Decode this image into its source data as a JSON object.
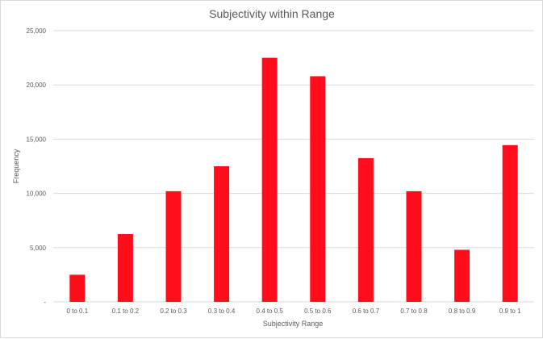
{
  "chart_data": {
    "type": "bar",
    "title": "Subjectivity within Range",
    "xlabel": "Subjectivity Range",
    "ylabel": "Frequency",
    "categories": [
      "0 to 0.1",
      "0.1 to 0.2",
      "0.2 to 0.3",
      "0.3 to 0.4",
      "0.4 to 0.5",
      "0.5 to 0.6",
      "0.6 to 0.7",
      "0.7 to 0.8",
      "0.8 to 0.9",
      "0.9 to 1"
    ],
    "values": [
      2500,
      6250,
      10200,
      12500,
      22500,
      20800,
      13250,
      10200,
      4800,
      14450
    ],
    "ylim": [
      0,
      25000
    ],
    "yticks": [
      {
        "value": 0,
        "label": "-"
      },
      {
        "value": 5000,
        "label": "5,000"
      },
      {
        "value": 10000,
        "label": "10,000"
      },
      {
        "value": 15000,
        "label": "15,000"
      },
      {
        "value": 20000,
        "label": "20,000"
      },
      {
        "value": 25000,
        "label": "25,000"
      }
    ],
    "grid": true,
    "bar_color": "#ff0d1a",
    "grid_color": "#d9d9d9"
  }
}
